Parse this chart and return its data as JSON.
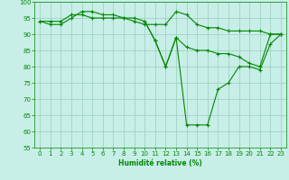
{
  "line1_x": [
    0,
    1,
    2,
    3,
    4,
    5,
    6,
    7,
    8,
    9,
    10,
    11,
    12,
    13,
    14,
    15,
    16,
    17,
    18,
    19,
    20,
    21,
    22,
    23
  ],
  "line1_y": [
    94,
    94,
    94,
    96,
    96,
    95,
    95,
    95,
    95,
    95,
    94,
    88,
    80,
    89,
    86,
    85,
    85,
    84,
    84,
    83,
    81,
    80,
    90,
    90
  ],
  "line2_x": [
    0,
    1,
    2,
    3,
    4,
    5,
    6,
    7,
    8,
    9,
    10,
    11,
    12,
    13,
    14,
    15,
    16,
    17,
    18,
    19,
    20,
    21,
    22,
    23
  ],
  "line2_y": [
    94,
    93,
    93,
    95,
    97,
    97,
    96,
    96,
    95,
    94,
    93,
    93,
    93,
    97,
    96,
    93,
    92,
    92,
    91,
    91,
    91,
    91,
    90,
    90
  ],
  "line3_x": [
    10,
    11,
    12,
    13,
    14,
    15,
    16,
    17,
    18,
    19,
    20,
    21,
    22,
    23
  ],
  "line3_y": [
    94,
    88,
    80,
    89,
    62,
    62,
    62,
    73,
    75,
    80,
    80,
    79,
    87,
    90
  ],
  "line_color": "#008800",
  "bg_color": "#c8eee8",
  "grid_color": "#99ccbb",
  "xlabel": "Humidité relative (%)",
  "xlim_min": -0.5,
  "xlim_max": 23.5,
  "ylim_min": 55,
  "ylim_max": 100,
  "yticks": [
    55,
    60,
    65,
    70,
    75,
    80,
    85,
    90,
    95,
    100
  ],
  "xticks": [
    0,
    1,
    2,
    3,
    4,
    5,
    6,
    7,
    8,
    9,
    10,
    11,
    12,
    13,
    14,
    15,
    16,
    17,
    18,
    19,
    20,
    21,
    22,
    23
  ],
  "tick_fontsize": 5.0,
  "xlabel_fontsize": 5.5,
  "linewidth": 0.8,
  "markersize": 3.0
}
